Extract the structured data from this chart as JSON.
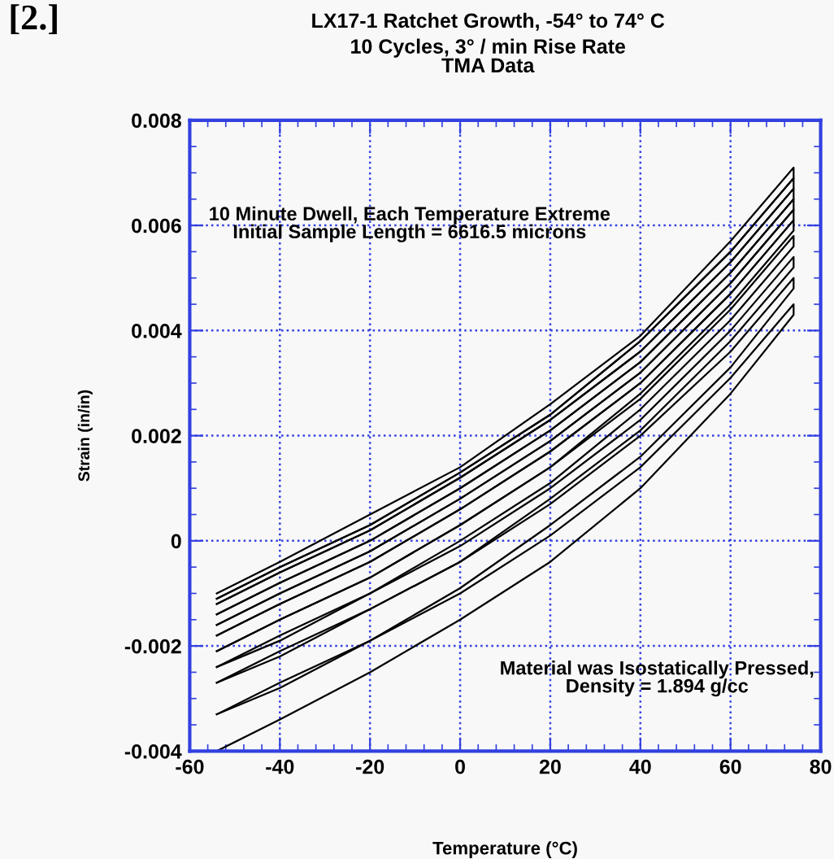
{
  "chart_data": {
    "type": "line",
    "title": "LX17-1 Ratchet Growth, -54° to 74° C",
    "subtitle": "10 Cycles, 3° / min Rise Rate\nTMA Data",
    "xlabel": "Temperature (°C)",
    "ylabel": "Strain (in/in)",
    "annotations": [
      "[2.]",
      "10 Minute Dwell, Each Temperature Extreme\nInitial Sample Length = 6616.5 microns",
      "Material was Isostatically Pressed,\nDensity = 1.894 g/cc"
    ],
    "x": [
      -54,
      -40,
      -20,
      0,
      20,
      40,
      60,
      74,
      74,
      60,
      40,
      20,
      0,
      -20,
      -40,
      -54
    ],
    "series": [
      {
        "color": "#000000",
        "values": [
          -0.004,
          -0.0034,
          -0.0025,
          -0.0015,
          -0.0004,
          0.001,
          0.0028,
          0.0043,
          0.0045,
          0.0031,
          0.0014,
          0.0001,
          -0.001,
          -0.0019,
          -0.0028,
          -0.0033
        ]
      },
      {
        "color": "#000000",
        "values": [
          -0.0033,
          -0.0027,
          -0.0019,
          -0.0009,
          0.0003,
          0.0016,
          0.0033,
          0.0048,
          0.005,
          0.0036,
          0.002,
          0.0007,
          -0.0004,
          -0.0013,
          -0.0022,
          -0.0027
        ]
      },
      {
        "color": "#000000",
        "values": [
          -0.0027,
          -0.0021,
          -0.0013,
          -0.0004,
          0.0008,
          0.0021,
          0.0038,
          0.0052,
          0.0054,
          0.004,
          0.0023,
          0.001,
          -0.0001,
          -0.001,
          -0.0019,
          -0.0024
        ]
      },
      {
        "color": "#000000",
        "values": [
          -0.0024,
          -0.0018,
          -0.001,
          0.0,
          0.0011,
          0.0025,
          0.0042,
          0.0056,
          0.0058,
          0.0044,
          0.0027,
          0.0014,
          0.0003,
          -0.0007,
          -0.0015,
          -0.0021
        ]
      },
      {
        "color": "#000000",
        "values": [
          -0.0021,
          -0.0015,
          -0.0007,
          0.0003,
          0.0014,
          0.0028,
          0.0045,
          0.0059,
          0.0061,
          0.0047,
          0.003,
          0.0017,
          0.0006,
          -0.0004,
          -0.0012,
          -0.0018
        ]
      },
      {
        "color": "#000000",
        "values": [
          -0.0018,
          -0.0012,
          -0.0004,
          0.0006,
          0.0017,
          0.003,
          0.0047,
          0.0061,
          0.0063,
          0.0049,
          0.0032,
          0.0019,
          0.0008,
          -0.0002,
          -0.001,
          -0.0016
        ]
      },
      {
        "color": "#000000",
        "values": [
          -0.0016,
          -0.001,
          -0.0002,
          0.0008,
          0.0019,
          0.0032,
          0.0049,
          0.0063,
          0.0065,
          0.0051,
          0.0034,
          0.0021,
          0.001,
          0.0,
          -0.0008,
          -0.0014
        ]
      },
      {
        "color": "#000000",
        "values": [
          -0.0014,
          -0.0008,
          0.0,
          0.001,
          0.0021,
          0.0034,
          0.0051,
          0.0065,
          0.0067,
          0.0053,
          0.0036,
          0.0023,
          0.0012,
          0.0002,
          -0.0006,
          -0.0012
        ]
      },
      {
        "color": "#000000",
        "values": [
          -0.0012,
          -0.0006,
          0.0002,
          0.0012,
          0.0023,
          0.0036,
          0.0053,
          0.0067,
          0.0069,
          0.0055,
          0.0038,
          0.0024,
          0.0013,
          0.0003,
          -0.0005,
          -0.0011
        ]
      },
      {
        "color": "#000000",
        "values": [
          -0.0011,
          -0.0005,
          0.0003,
          0.0013,
          0.0024,
          0.0038,
          0.0055,
          0.0069,
          0.0071,
          0.0057,
          0.0039,
          0.0026,
          0.0014,
          0.0005,
          -0.0004,
          -0.001
        ]
      }
    ],
    "xlim": [
      -60,
      80
    ],
    "xticks": [
      -60,
      -40,
      -20,
      0,
      20,
      40,
      60,
      80
    ],
    "ylim": [
      -0.004,
      0.008
    ],
    "yticks": [
      {
        "value": -0.004,
        "label": "-0.004"
      },
      {
        "value": -0.002,
        "label": "-0.002"
      },
      0,
      {
        "value": 0.002,
        "label": "0.002"
      },
      {
        "value": 0.004,
        "label": "0.004"
      },
      {
        "value": 0.006,
        "label": "0.006"
      },
      {
        "value": 0.008,
        "label": "0.008"
      }
    ],
    "grid": true,
    "marker": "none",
    "line_style": "solid",
    "legend": false
  }
}
